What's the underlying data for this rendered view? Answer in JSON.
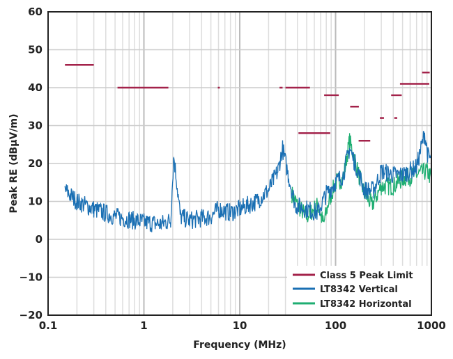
{
  "chart_data": {
    "type": "line",
    "xlabel": "Frequency (MHz)",
    "ylabel": "Peak RE (dBµV/m)",
    "xscale": "log",
    "xlim": [
      0.1,
      1000
    ],
    "ylim": [
      -20,
      60
    ],
    "xticks": [
      {
        "v": 0.1,
        "label": "0.1"
      },
      {
        "v": 1,
        "label": "1"
      },
      {
        "v": 10,
        "label": "10"
      },
      {
        "v": 100,
        "label": "100"
      },
      {
        "v": 1000,
        "label": "1000"
      }
    ],
    "yticks": [
      {
        "v": 60,
        "label": "60"
      },
      {
        "v": 50,
        "label": "50"
      },
      {
        "v": 40,
        "label": "40"
      },
      {
        "v": 30,
        "label": "30"
      },
      {
        "v": 20,
        "label": "20"
      },
      {
        "v": 10,
        "label": "10"
      },
      {
        "v": 0,
        "label": "0"
      },
      {
        "v": -10,
        "label": "−10"
      },
      {
        "v": -20,
        "label": "−20"
      }
    ],
    "grid": true,
    "legend_position": "bottom-right",
    "series": [
      {
        "name": "Class 5 Peak Limit",
        "color": "#a3224a",
        "kind": "segments",
        "segments": [
          [
            0.15,
            0.3,
            46
          ],
          [
            0.53,
            1.8,
            40
          ],
          [
            5.9,
            6.2,
            40
          ],
          [
            26,
            28,
            40
          ],
          [
            30,
            54,
            40
          ],
          [
            41,
            88,
            28
          ],
          [
            76,
            108,
            38
          ],
          [
            142,
            175,
            35
          ],
          [
            174,
            230,
            26
          ],
          [
            290,
            320,
            32
          ],
          [
            410,
            440,
            32
          ],
          [
            380,
            490,
            38
          ],
          [
            470,
            950,
            41
          ],
          [
            800,
            960,
            44
          ]
        ]
      },
      {
        "name": "LT8342 Horizontal",
        "color": "#1fae72",
        "kind": "noise",
        "points": [
          [
            35,
            12
          ],
          [
            40,
            9
          ],
          [
            50,
            6
          ],
          [
            65,
            9
          ],
          [
            75,
            4
          ],
          [
            85,
            10
          ],
          [
            100,
            15
          ],
          [
            120,
            16
          ],
          [
            140,
            26
          ],
          [
            170,
            18
          ],
          [
            200,
            12
          ],
          [
            240,
            9
          ],
          [
            300,
            14
          ],
          [
            400,
            14
          ],
          [
            500,
            16
          ],
          [
            700,
            17
          ],
          [
            900,
            18
          ],
          [
            1000,
            16
          ]
        ]
      },
      {
        "name": "LT8342 Vertical",
        "color": "#1a6fb3",
        "kind": "noise",
        "points": [
          [
            0.15,
            13
          ],
          [
            0.2,
            10
          ],
          [
            0.3,
            8
          ],
          [
            0.5,
            6
          ],
          [
            1,
            4.5
          ],
          [
            1.5,
            4
          ],
          [
            1.9,
            5
          ],
          [
            2.05,
            22
          ],
          [
            2.2,
            15
          ],
          [
            2.4,
            6
          ],
          [
            3,
            5
          ],
          [
            5,
            6
          ],
          [
            6,
            8
          ],
          [
            8,
            7
          ],
          [
            10,
            8
          ],
          [
            15,
            10
          ],
          [
            20,
            13
          ],
          [
            25,
            18
          ],
          [
            28,
            24
          ],
          [
            32,
            17
          ],
          [
            38,
            9
          ],
          [
            50,
            8
          ],
          [
            65,
            7
          ],
          [
            80,
            12
          ],
          [
            100,
            15
          ],
          [
            120,
            17
          ],
          [
            140,
            24
          ],
          [
            160,
            20
          ],
          [
            200,
            13
          ],
          [
            250,
            13
          ],
          [
            300,
            18
          ],
          [
            400,
            17
          ],
          [
            500,
            17
          ],
          [
            700,
            19
          ],
          [
            850,
            28
          ],
          [
            920,
            22
          ],
          [
            1000,
            21
          ]
        ]
      }
    ],
    "legend": [
      "Class 5 Peak Limit",
      "LT8342 Vertical",
      "LT8342 Horizontal"
    ]
  }
}
